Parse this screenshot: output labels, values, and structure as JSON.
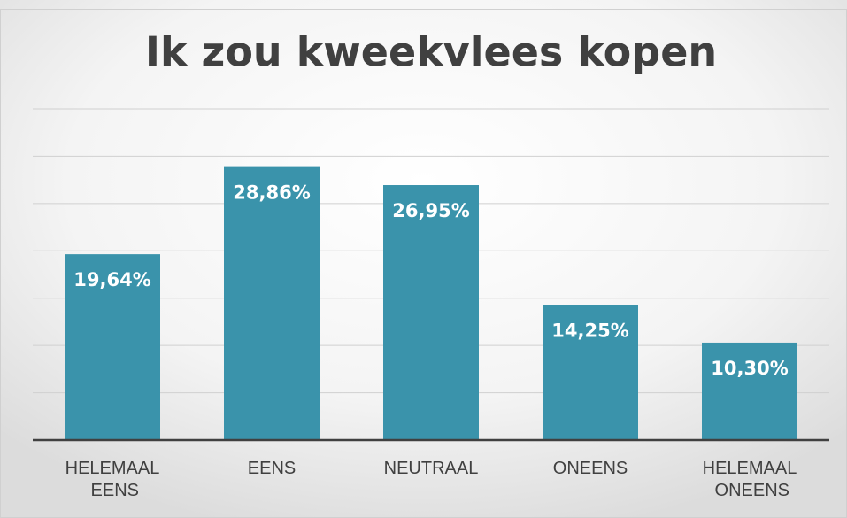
{
  "chart_data": {
    "type": "bar",
    "title": "Ik zou kweekvlees kopen",
    "categories": [
      "HELEMAAL EENS",
      "EENS",
      "NEUTRAAL",
      "ONEENS",
      "HELEMAAL ONEENS"
    ],
    "values": [
      19.64,
      28.86,
      26.95,
      14.25,
      10.3
    ],
    "value_labels": [
      "19,64%",
      "28,86%",
      "26,95%",
      "14,25%",
      "10,30%"
    ],
    "color": "#3a93ab",
    "ylim": [
      0,
      35
    ],
    "yticks": [
      0,
      5,
      10,
      15,
      20,
      25,
      30,
      35
    ],
    "grid": true
  }
}
